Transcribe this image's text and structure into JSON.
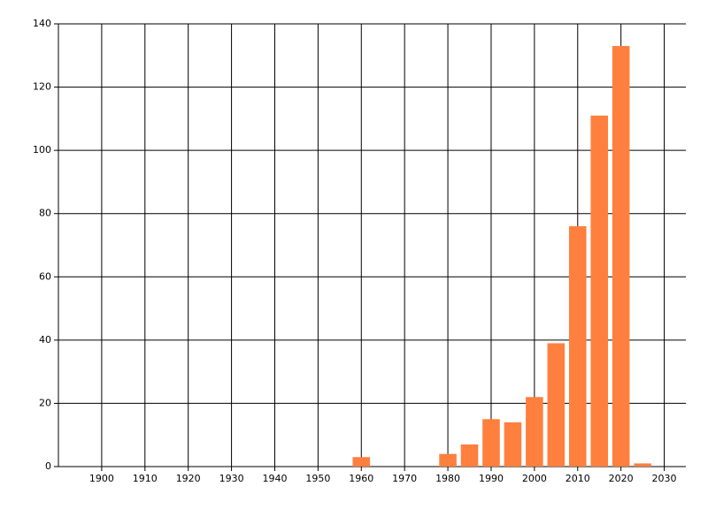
{
  "chart_data": {
    "type": "bar",
    "x": [
      1960,
      1980,
      1985,
      1990,
      1995,
      2000,
      2005,
      2010,
      2015,
      2020,
      2025
    ],
    "values": [
      3,
      4,
      7,
      15,
      14,
      22,
      39,
      76,
      111,
      133,
      1
    ],
    "color": "#ff7f3f",
    "xlim": [
      1890,
      2035
    ],
    "xticks": [
      1900,
      1910,
      1920,
      1930,
      1940,
      1950,
      1960,
      1970,
      1980,
      1990,
      2000,
      2010,
      2020,
      2030
    ],
    "ylim": [
      0,
      140
    ],
    "yticks": [
      0,
      20,
      40,
      60,
      80,
      100,
      120,
      140
    ],
    "grid": true
  }
}
